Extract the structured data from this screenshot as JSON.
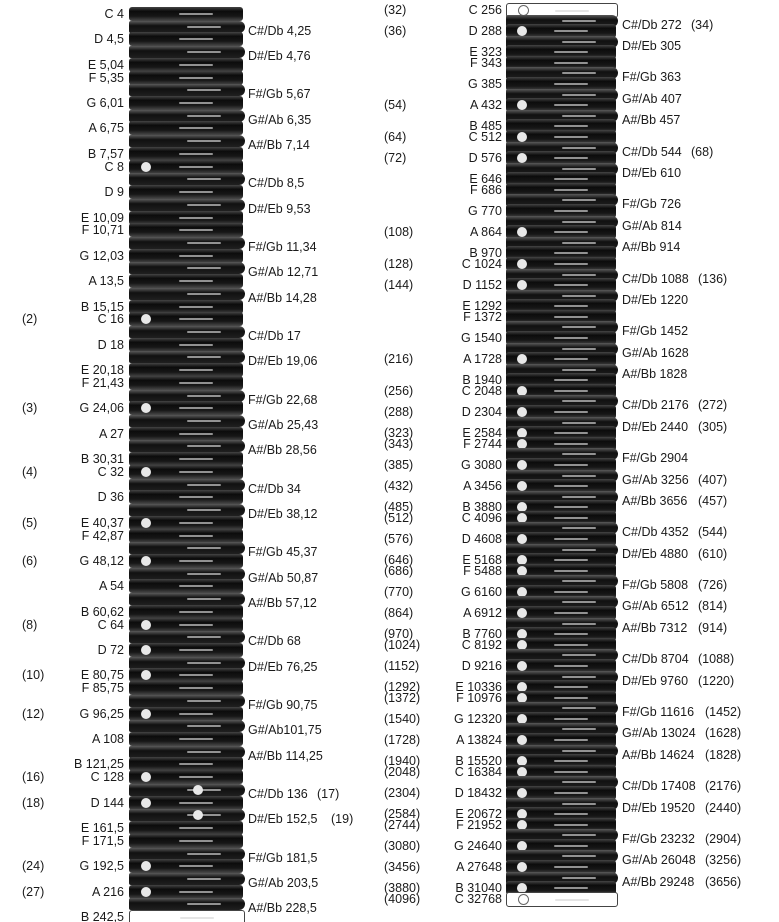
{
  "left_column": [
    {
      "kind": "nat",
      "label": "C 4",
      "paren": ""
    },
    {
      "kind": "acc",
      "label": "C#/Db 4,25",
      "paren": ""
    },
    {
      "kind": "nat",
      "label": "D 4,5",
      "paren": ""
    },
    {
      "kind": "acc",
      "label": "D#/Eb 4,76",
      "paren": ""
    },
    {
      "kind": "nat",
      "label": "E 5,04",
      "paren": ""
    },
    {
      "kind": "nat",
      "label": "F 5,35",
      "paren": ""
    },
    {
      "kind": "acc",
      "label": "F#/Gb 5,67",
      "paren": ""
    },
    {
      "kind": "nat",
      "label": "G 6,01",
      "paren": ""
    },
    {
      "kind": "acc",
      "label": "G#/Ab 6,35",
      "paren": ""
    },
    {
      "kind": "nat",
      "label": "A 6,75",
      "paren": ""
    },
    {
      "kind": "acc",
      "label": "A#/Bb 7,14",
      "paren": ""
    },
    {
      "kind": "nat",
      "label": "B 7,57",
      "paren": ""
    },
    {
      "kind": "nat",
      "label": "C 8",
      "paren": "",
      "dot": true
    },
    {
      "kind": "acc",
      "label": "C#/Db 8,5",
      "paren": ""
    },
    {
      "kind": "nat",
      "label": "D 9",
      "paren": ""
    },
    {
      "kind": "acc",
      "label": "D#/Eb 9,53",
      "paren": ""
    },
    {
      "kind": "nat",
      "label": "E 10,09",
      "paren": ""
    },
    {
      "kind": "nat",
      "label": "F 10,71",
      "paren": ""
    },
    {
      "kind": "acc",
      "label": "F#/Gb 11,34",
      "paren": ""
    },
    {
      "kind": "nat",
      "label": "G 12,03",
      "paren": ""
    },
    {
      "kind": "acc",
      "label": "G#/Ab 12,71",
      "paren": ""
    },
    {
      "kind": "nat",
      "label": "A 13,5",
      "paren": ""
    },
    {
      "kind": "acc",
      "label": "A#/Bb 14,28",
      "paren": ""
    },
    {
      "kind": "nat",
      "label": "B 15,15",
      "paren": ""
    },
    {
      "kind": "nat",
      "label": "C 16",
      "paren": "(2)",
      "dot": true
    },
    {
      "kind": "acc",
      "label": "C#/Db 17",
      "paren": ""
    },
    {
      "kind": "nat",
      "label": "D 18",
      "paren": ""
    },
    {
      "kind": "acc",
      "label": "D#/Eb 19,06",
      "paren": ""
    },
    {
      "kind": "nat",
      "label": "E 20,18",
      "paren": ""
    },
    {
      "kind": "nat",
      "label": "F 21,43",
      "paren": ""
    },
    {
      "kind": "acc",
      "label": "F#/Gb 22,68",
      "paren": ""
    },
    {
      "kind": "nat",
      "label": "G 24,06",
      "paren": "(3)",
      "dot": true
    },
    {
      "kind": "acc",
      "label": "G#/Ab 25,43",
      "paren": ""
    },
    {
      "kind": "nat",
      "label": "A 27",
      "paren": ""
    },
    {
      "kind": "acc",
      "label": "A#/Bb 28,56",
      "paren": ""
    },
    {
      "kind": "nat",
      "label": "B 30,31",
      "paren": ""
    },
    {
      "kind": "nat",
      "label": "C 32",
      "paren": "(4)",
      "dot": true
    },
    {
      "kind": "acc",
      "label": "C#/Db 34",
      "paren": ""
    },
    {
      "kind": "nat",
      "label": "D 36",
      "paren": ""
    },
    {
      "kind": "acc",
      "label": "D#/Eb 38,12",
      "paren": ""
    },
    {
      "kind": "nat",
      "label": "E 40,37",
      "paren": "(5)",
      "dot": true
    },
    {
      "kind": "nat",
      "label": "F 42,87",
      "paren": ""
    },
    {
      "kind": "acc",
      "label": "F#/Gb 45,37",
      "paren": ""
    },
    {
      "kind": "nat",
      "label": "G 48,12",
      "paren": "(6)",
      "dot": true
    },
    {
      "kind": "acc",
      "label": "G#/Ab 50,87",
      "paren": ""
    },
    {
      "kind": "nat",
      "label": "A 54",
      "paren": ""
    },
    {
      "kind": "acc",
      "label": "A#/Bb 57,12",
      "paren": ""
    },
    {
      "kind": "nat",
      "label": "B 60,62",
      "paren": ""
    },
    {
      "kind": "nat",
      "label": "C 64",
      "paren": "(8)",
      "dot": true
    },
    {
      "kind": "acc",
      "label": "C#/Db 68",
      "paren": ""
    },
    {
      "kind": "nat",
      "label": "D 72",
      "paren": "",
      "dot": true
    },
    {
      "kind": "acc",
      "label": "D#/Eb 76,25",
      "paren": ""
    },
    {
      "kind": "nat",
      "label": "E 80,75",
      "paren": "(10)",
      "dot": true
    },
    {
      "kind": "nat",
      "label": "F 85,75",
      "paren": ""
    },
    {
      "kind": "acc",
      "label": "F#/Gb 90,75",
      "paren": ""
    },
    {
      "kind": "nat",
      "label": "G 96,25",
      "paren": "(12)",
      "dot": true
    },
    {
      "kind": "acc",
      "label": "G#/Ab101,75",
      "paren": ""
    },
    {
      "kind": "nat",
      "label": "A 108",
      "paren": ""
    },
    {
      "kind": "acc",
      "label": "A#/Bb 114,25",
      "paren": ""
    },
    {
      "kind": "nat",
      "label": "B 121,25",
      "paren": ""
    },
    {
      "kind": "nat",
      "label": "C 128",
      "paren": "(16)",
      "dot": true
    },
    {
      "kind": "acc",
      "label": "C#/Db 136",
      "paren": "(17)",
      "dot": true
    },
    {
      "kind": "nat",
      "label": "D 144",
      "paren": "(18)",
      "dot": true
    },
    {
      "kind": "acc",
      "label": "D#/Eb 152,5",
      "paren": "(19)",
      "dot": true
    },
    {
      "kind": "nat",
      "label": "E 161,5",
      "paren": ""
    },
    {
      "kind": "nat",
      "label": "F 171,5",
      "paren": ""
    },
    {
      "kind": "acc",
      "label": "F#/Gb 181,5",
      "paren": ""
    },
    {
      "kind": "nat",
      "label": "G 192,5",
      "paren": "(24)",
      "dot": true
    },
    {
      "kind": "acc",
      "label": "G#/Ab 203,5",
      "paren": ""
    },
    {
      "kind": "nat",
      "label": "A 216",
      "paren": "(27)",
      "dot": true
    },
    {
      "kind": "acc",
      "label": "A#/Bb 228,5",
      "paren": ""
    },
    {
      "kind": "nat",
      "label": "B 242,5",
      "paren": "",
      "white": true
    }
  ],
  "right_column": [
    {
      "kind": "nat",
      "label": "C 256",
      "paren": "(32)",
      "dot": true,
      "white": true
    },
    {
      "kind": "acc",
      "label": "C#/Db 272",
      "paren": "(34)"
    },
    {
      "kind": "nat",
      "label": "D 288",
      "paren": "(36)",
      "dot": true
    },
    {
      "kind": "acc",
      "label": "D#/Eb 305",
      "paren": ""
    },
    {
      "kind": "nat",
      "label": "E 323",
      "paren": ""
    },
    {
      "kind": "nat",
      "label": "F 343",
      "paren": ""
    },
    {
      "kind": "acc",
      "label": "F#/Gb 363",
      "paren": ""
    },
    {
      "kind": "nat",
      "label": "G 385",
      "paren": ""
    },
    {
      "kind": "acc",
      "label": "G#/Ab 407",
      "paren": ""
    },
    {
      "kind": "nat",
      "label": "A 432",
      "paren": "(54)",
      "dot": true
    },
    {
      "kind": "acc",
      "label": "A#/Bb 457",
      "paren": ""
    },
    {
      "kind": "nat",
      "label": "B 485",
      "paren": ""
    },
    {
      "kind": "nat",
      "label": "C 512",
      "paren": "(64)",
      "dot": true
    },
    {
      "kind": "acc",
      "label": "C#/Db 544",
      "paren": "(68)"
    },
    {
      "kind": "nat",
      "label": "D 576",
      "paren": "(72)",
      "dot": true
    },
    {
      "kind": "acc",
      "label": "D#/Eb 610",
      "paren": ""
    },
    {
      "kind": "nat",
      "label": "E 646",
      "paren": ""
    },
    {
      "kind": "nat",
      "label": "F 686",
      "paren": ""
    },
    {
      "kind": "acc",
      "label": "F#/Gb 726",
      "paren": ""
    },
    {
      "kind": "nat",
      "label": "G 770",
      "paren": ""
    },
    {
      "kind": "acc",
      "label": "G#/Ab 814",
      "paren": ""
    },
    {
      "kind": "nat",
      "label": "A 864",
      "paren": "(108)",
      "dot": true
    },
    {
      "kind": "acc",
      "label": "A#/Bb 914",
      "paren": ""
    },
    {
      "kind": "nat",
      "label": "B 970",
      "paren": ""
    },
    {
      "kind": "nat",
      "label": "C 1024",
      "paren": "(128)",
      "dot": true
    },
    {
      "kind": "acc",
      "label": "C#/Db 1088",
      "paren": "(136)"
    },
    {
      "kind": "nat",
      "label": "D 1152",
      "paren": "(144)",
      "dot": true
    },
    {
      "kind": "acc",
      "label": "D#/Eb 1220",
      "paren": ""
    },
    {
      "kind": "nat",
      "label": "E 1292",
      "paren": ""
    },
    {
      "kind": "nat",
      "label": "F 1372",
      "paren": ""
    },
    {
      "kind": "acc",
      "label": "F#/Gb 1452",
      "paren": ""
    },
    {
      "kind": "nat",
      "label": "G 1540",
      "paren": ""
    },
    {
      "kind": "acc",
      "label": "G#/Ab 1628",
      "paren": ""
    },
    {
      "kind": "nat",
      "label": "A 1728",
      "paren": "(216)",
      "dot": true
    },
    {
      "kind": "acc",
      "label": "A#/Bb 1828",
      "paren": ""
    },
    {
      "kind": "nat",
      "label": "B 1940",
      "paren": ""
    },
    {
      "kind": "nat",
      "label": "C 2048",
      "paren": "(256)",
      "dot": true
    },
    {
      "kind": "acc",
      "label": "C#/Db 2176",
      "paren": "(272)"
    },
    {
      "kind": "nat",
      "label": "D 2304",
      "paren": "(288)",
      "dot": true
    },
    {
      "kind": "acc",
      "label": "D#/Eb 2440",
      "paren": "(305)"
    },
    {
      "kind": "nat",
      "label": "E 2584",
      "paren": "(323)",
      "dot": true
    },
    {
      "kind": "nat",
      "label": "F 2744",
      "paren": "(343)",
      "dot": true
    },
    {
      "kind": "acc",
      "label": "F#/Gb 2904",
      "paren": ""
    },
    {
      "kind": "nat",
      "label": "G 3080",
      "paren": "(385)",
      "dot": true
    },
    {
      "kind": "acc",
      "label": "G#/Ab 3256",
      "paren": "(407)"
    },
    {
      "kind": "nat",
      "label": "A 3456",
      "paren": "(432)",
      "dot": true
    },
    {
      "kind": "acc",
      "label": "A#/Bb 3656",
      "paren": "(457)"
    },
    {
      "kind": "nat",
      "label": "B 3880",
      "paren": "(485)",
      "dot": true
    },
    {
      "kind": "nat",
      "label": "C 4096",
      "paren": "(512)",
      "dot": true
    },
    {
      "kind": "acc",
      "label": "C#/Db 4352",
      "paren": "(544)"
    },
    {
      "kind": "nat",
      "label": "D 4608",
      "paren": "(576)",
      "dot": true
    },
    {
      "kind": "acc",
      "label": "D#/Eb 4880",
      "paren": "(610)"
    },
    {
      "kind": "nat",
      "label": "E 5168",
      "paren": "(646)",
      "dot": true
    },
    {
      "kind": "nat",
      "label": "F 5488",
      "paren": "(686)",
      "dot": true
    },
    {
      "kind": "acc",
      "label": "F#/Gb 5808",
      "paren": "(726)"
    },
    {
      "kind": "nat",
      "label": "G 6160",
      "paren": "(770)",
      "dot": true
    },
    {
      "kind": "acc",
      "label": "G#/Ab 6512",
      "paren": "(814)"
    },
    {
      "kind": "nat",
      "label": "A 6912",
      "paren": "(864)",
      "dot": true
    },
    {
      "kind": "acc",
      "label": "A#/Bb 7312",
      "paren": "(914)"
    },
    {
      "kind": "nat",
      "label": "B 7760",
      "paren": "(970)",
      "dot": true
    },
    {
      "kind": "nat",
      "label": "C 8192",
      "paren": "(1024)",
      "dot": true
    },
    {
      "kind": "acc",
      "label": "C#/Db 8704",
      "paren": "(1088)"
    },
    {
      "kind": "nat",
      "label": "D 9216",
      "paren": "(1152)",
      "dot": true
    },
    {
      "kind": "acc",
      "label": "D#/Eb 9760",
      "paren": "(1220)"
    },
    {
      "kind": "nat",
      "label": "E 10336",
      "paren": "(1292)",
      "dot": true
    },
    {
      "kind": "nat",
      "label": "F 10976",
      "paren": "(1372)",
      "dot": true
    },
    {
      "kind": "acc",
      "label": "F#/Gb 11616",
      "paren": "(1452)"
    },
    {
      "kind": "nat",
      "label": "G 12320",
      "paren": "(1540)",
      "dot": true
    },
    {
      "kind": "acc",
      "label": "G#/Ab 13024",
      "paren": "(1628)"
    },
    {
      "kind": "nat",
      "label": "A 13824",
      "paren": "(1728)",
      "dot": true
    },
    {
      "kind": "acc",
      "label": "A#/Bb 14624",
      "paren": "(1828)"
    },
    {
      "kind": "nat",
      "label": "B 15520",
      "paren": "(1940)",
      "dot": true
    },
    {
      "kind": "nat",
      "label": "C 16384",
      "paren": "(2048)",
      "dot": true
    },
    {
      "kind": "acc",
      "label": "C#/Db 17408",
      "paren": "(2176)"
    },
    {
      "kind": "nat",
      "label": "D 18432",
      "paren": "(2304)",
      "dot": true
    },
    {
      "kind": "acc",
      "label": "D#/Eb 19520",
      "paren": "(2440)"
    },
    {
      "kind": "nat",
      "label": "E 20672",
      "paren": "(2584)",
      "dot": true
    },
    {
      "kind": "nat",
      "label": "F 21952",
      "paren": "(2744)",
      "dot": true
    },
    {
      "kind": "acc",
      "label": "F#/Gb 23232",
      "paren": "(2904)"
    },
    {
      "kind": "nat",
      "label": "G 24640",
      "paren": "(3080)",
      "dot": true
    },
    {
      "kind": "acc",
      "label": "G#/Ab 26048",
      "paren": "(3256)"
    },
    {
      "kind": "nat",
      "label": "A 27648",
      "paren": "(3456)",
      "dot": true
    },
    {
      "kind": "acc",
      "label": "A#/Bb 29248",
      "paren": "(3656)"
    },
    {
      "kind": "nat",
      "label": "B 31040",
      "paren": "(3880)",
      "dot": true
    },
    {
      "kind": "nat",
      "label": "C 32768",
      "paren": "(4096)",
      "dot": true,
      "white": true
    }
  ]
}
